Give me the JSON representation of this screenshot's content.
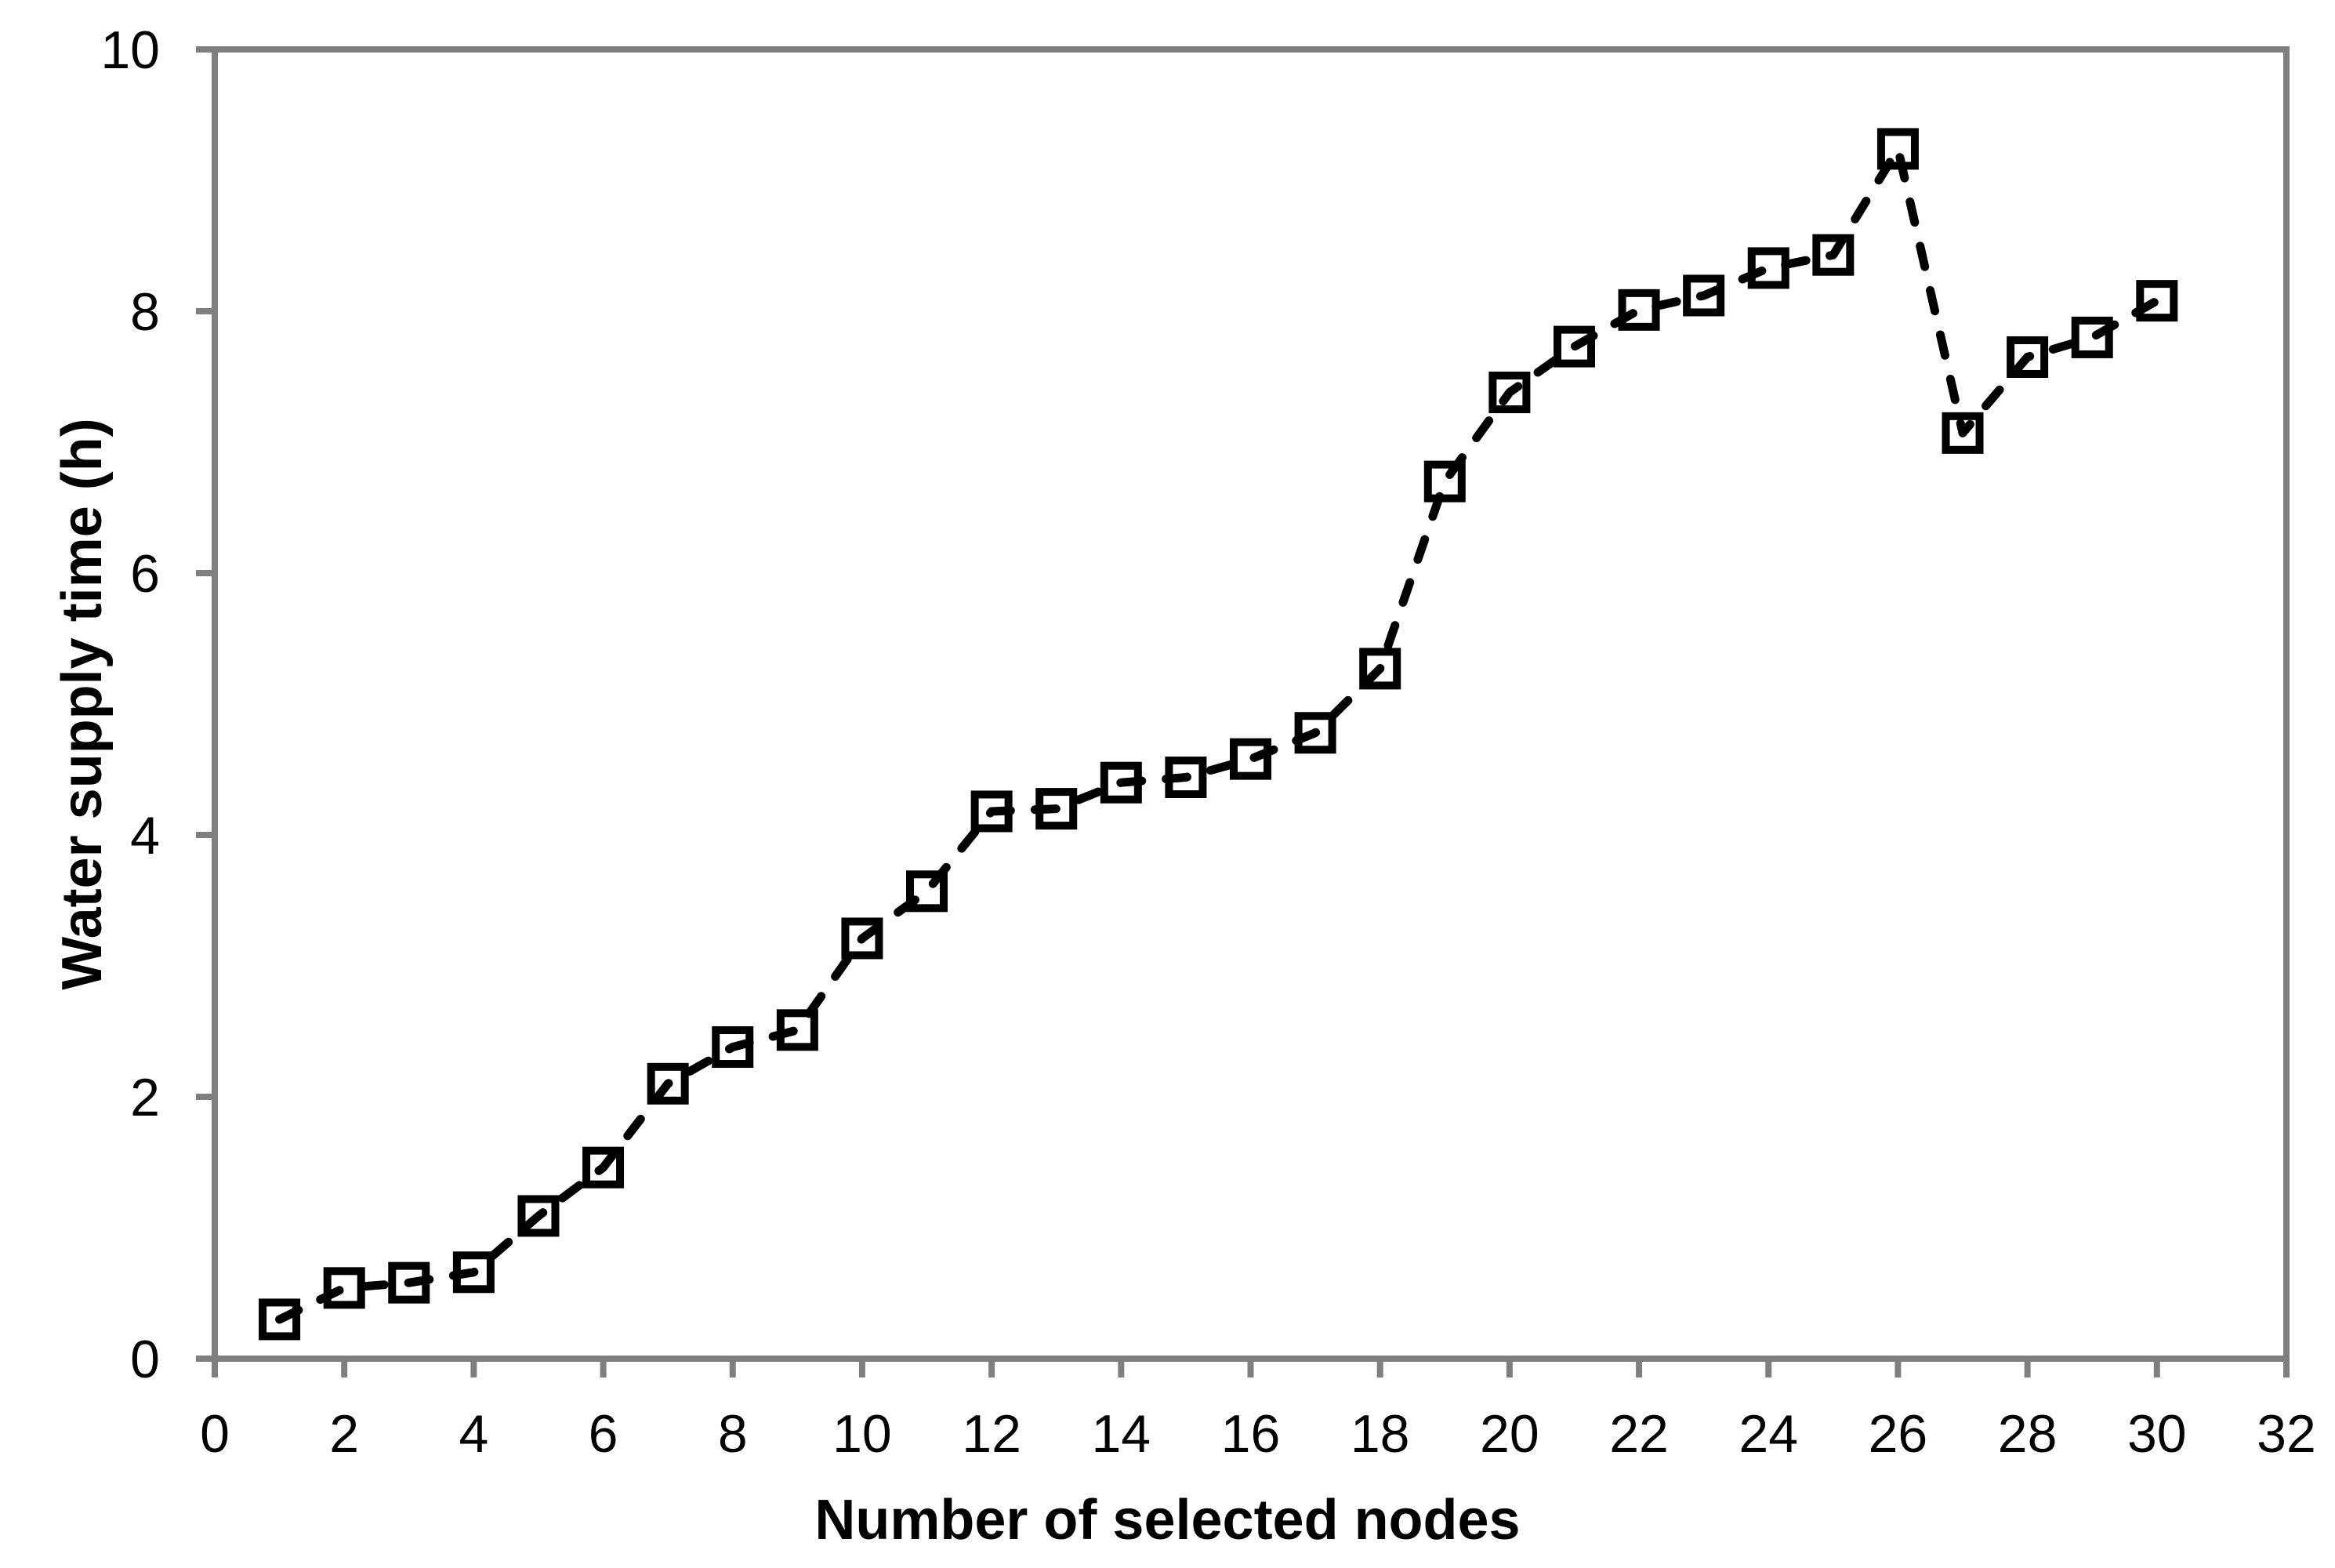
{
  "page": {
    "background": "#ffffff"
  },
  "chart_data": {
    "type": "line",
    "title": "",
    "xlabel": "Number of selected nodes",
    "ylabel": "Water supply time (h)",
    "grid": "off",
    "legend": "none",
    "plot_frame": "box",
    "axis_color": "#7f7f7f",
    "text_color": "#000000",
    "series": [
      {
        "name": "Water supply time",
        "color": "#000000",
        "line_style": "dashed",
        "marker": "open-square",
        "x": [
          1,
          2,
          3,
          4,
          5,
          6,
          7,
          8,
          9,
          10,
          11,
          12,
          13,
          14,
          15,
          16,
          17,
          18,
          19,
          20,
          21,
          22,
          23,
          24,
          25,
          26,
          27,
          28,
          29,
          30
        ],
        "y": [
          0.3,
          0.54,
          0.58,
          0.66,
          1.09,
          1.46,
          2.1,
          2.38,
          2.51,
          3.21,
          3.57,
          4.18,
          4.2,
          4.4,
          4.44,
          4.58,
          4.78,
          5.27,
          6.7,
          7.38,
          7.73,
          8.01,
          8.12,
          8.33,
          8.43,
          9.24,
          7.07,
          7.65,
          7.8,
          8.08
        ]
      }
    ],
    "xlim": [
      0,
      32
    ],
    "ylim": [
      0,
      10
    ],
    "xticks": [
      0,
      2,
      4,
      6,
      8,
      10,
      12,
      14,
      16,
      18,
      20,
      22,
      24,
      26,
      28,
      30,
      32
    ],
    "yticks": [
      0,
      2,
      4,
      6,
      8,
      10
    ]
  }
}
